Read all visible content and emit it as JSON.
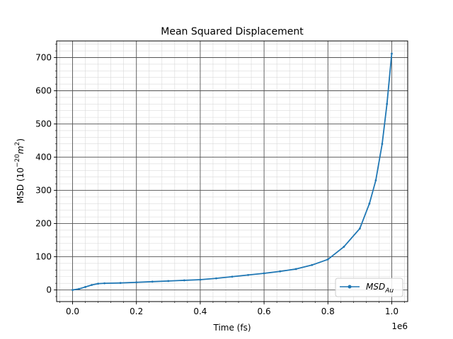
{
  "chart_data": {
    "type": "line",
    "title": "Mean Squared Displacement",
    "xlabel": "Time (fs)",
    "ylabel_prefix": "MSD (10",
    "ylabel_exp": "−20",
    "ylabel_unit": "m",
    "ylabel_unit_exp": "2",
    "ylabel_suffix": ")",
    "x_offset_label": "1e6",
    "xlim": [
      -50000,
      1050000
    ],
    "ylim": [
      -35,
      750
    ],
    "xticks": [
      0,
      200000,
      400000,
      600000,
      800000,
      1000000
    ],
    "xtick_labels": [
      "0.0",
      "0.2",
      "0.4",
      "0.6",
      "0.8",
      "1.0"
    ],
    "yticks": [
      0,
      100,
      200,
      300,
      400,
      500,
      600,
      700
    ],
    "ytick_labels": [
      "0",
      "100",
      "200",
      "300",
      "400",
      "500",
      "600",
      "700"
    ],
    "grid": true,
    "legend_position": "lower-right",
    "series": [
      {
        "name": "MSD",
        "name_subscript": "Au",
        "color": "#1f77b4",
        "x": [
          0,
          20000,
          40000,
          60000,
          80000,
          100000,
          150000,
          200000,
          250000,
          300000,
          350000,
          400000,
          450000,
          500000,
          550000,
          600000,
          650000,
          700000,
          750000,
          800000,
          850000,
          900000,
          930000,
          950000,
          970000,
          985000,
          1000000
        ],
        "y": [
          0,
          3,
          9,
          15,
          19,
          20,
          21,
          23,
          25,
          27,
          29,
          31,
          35,
          40,
          45,
          50,
          56,
          63,
          75,
          92,
          130,
          185,
          260,
          330,
          440,
          560,
          712
        ]
      }
    ]
  }
}
